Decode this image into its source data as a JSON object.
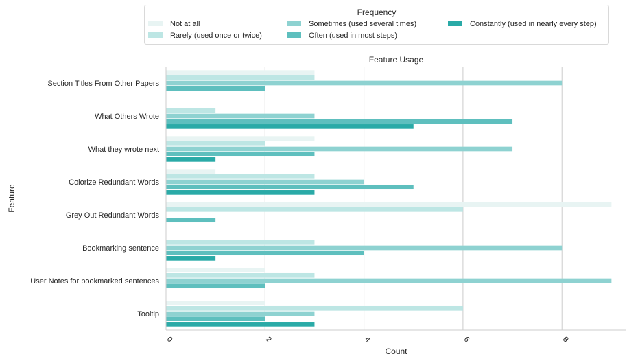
{
  "chart_data": {
    "type": "bar",
    "orientation": "horizontal",
    "title": "Feature Usage",
    "xlabel": "Count",
    "ylabel": "Feature",
    "xlim": [
      0,
      9.3
    ],
    "xticks": [
      0,
      2,
      4,
      6,
      8
    ],
    "grid": "vertical",
    "legend": {
      "title": "Frequency",
      "placement": "top-center",
      "entries": [
        "Not at all",
        "Rarely (used once or twice)",
        "Sometimes (used several times)",
        "Often (used in most steps)",
        "Constantly (used in nearly every step)"
      ]
    },
    "colors": [
      "#e8f4f3",
      "#bde6e4",
      "#8ed2d1",
      "#5ebfbe",
      "#2aaaa7"
    ],
    "categories": [
      "Section Titles From Other Papers",
      "What Others Wrote",
      "What they wrote next",
      "Colorize Redundant Words",
      "Grey Out Redundant Words",
      "Bookmarking sentence",
      "User Notes for bookmarked sentences",
      "Tooltip"
    ],
    "series": [
      {
        "name": "Not at all",
        "values": [
          3,
          0,
          3,
          1,
          9,
          0,
          2,
          2
        ]
      },
      {
        "name": "Rarely (used once or twice)",
        "values": [
          3,
          1,
          2,
          3,
          6,
          3,
          3,
          6
        ]
      },
      {
        "name": "Sometimes (used several times)",
        "values": [
          8,
          3,
          7,
          4,
          0,
          8,
          9,
          3
        ]
      },
      {
        "name": "Often (used in most steps)",
        "values": [
          2,
          7,
          3,
          5,
          1,
          4,
          2,
          2
        ]
      },
      {
        "name": "Constantly (used in nearly every step)",
        "values": [
          0,
          5,
          1,
          3,
          0,
          1,
          0,
          3
        ]
      }
    ]
  }
}
